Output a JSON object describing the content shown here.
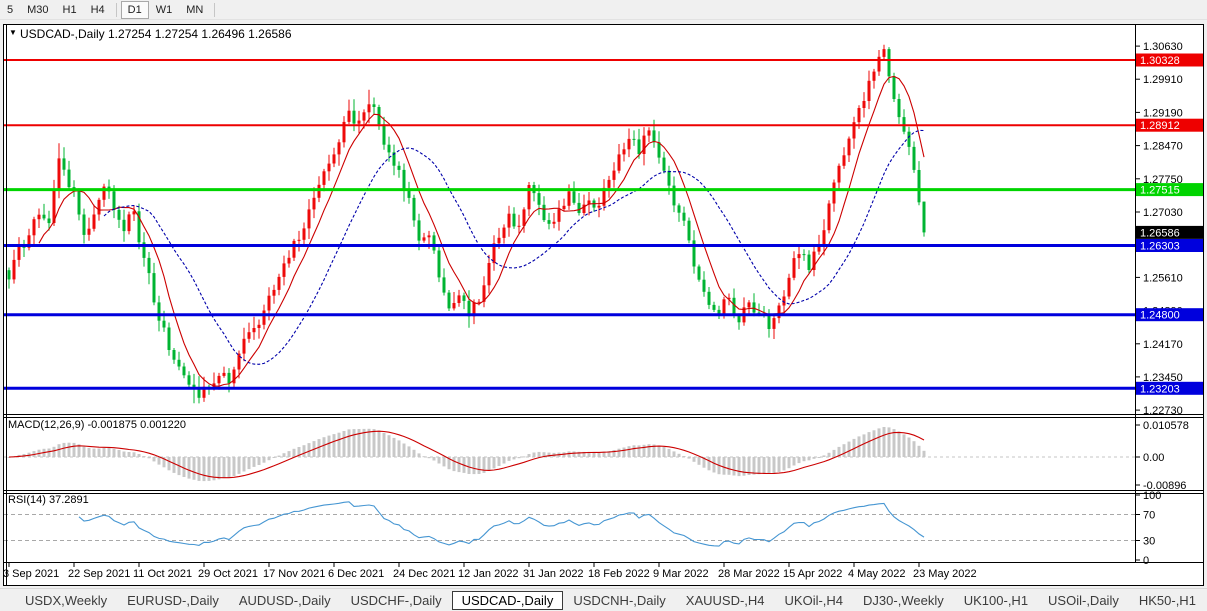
{
  "toolbar": {
    "items": [
      {
        "label": "5",
        "active": false,
        "sep_after": false
      },
      {
        "label": "M30",
        "active": false,
        "sep_after": false
      },
      {
        "label": "H1",
        "active": false,
        "sep_after": false
      },
      {
        "label": "H4",
        "active": false,
        "sep_after": true
      },
      {
        "label": "D1",
        "active": true,
        "sep_after": false
      },
      {
        "label": "W1",
        "active": false,
        "sep_after": false
      },
      {
        "label": "MN",
        "active": false,
        "sep_after": true
      }
    ]
  },
  "chart_title": {
    "collapse_icon": "▼",
    "text": "USDCAD-,Daily  1.27254 1.27254 1.26496 1.26586"
  },
  "chart_data": {
    "type": "candlestick",
    "symbol": "USDCAD-",
    "timeframe": "Daily",
    "ohlc_readout": {
      "open": 1.27254,
      "high": 1.27254,
      "low": 1.26496,
      "close": 1.26586
    },
    "num_candles": 184,
    "candles_per_date_label": 13,
    "x_date_labels": [
      "3 Sep 2021",
      "22 Sep 2021",
      "11 Oct 2021",
      "29 Oct 2021",
      "17 Nov 2021",
      "6 Dec 2021",
      "24 Dec 2021",
      "12 Jan 2022",
      "31 Jan 2022",
      "18 Feb 2022",
      "9 Mar 2022",
      "28 Mar 2022",
      "15 Apr 2022",
      "4 May 2022",
      "23 May 2022"
    ],
    "price_axis_ticks": [
      "1.30630",
      "1.29910",
      "1.29190",
      "1.28470",
      "1.27750",
      "1.27030",
      "1.26320",
      "1.25610",
      "1.24890",
      "1.24170",
      "1.23450",
      "1.22730"
    ],
    "price_range_estimate": {
      "top": 1.31022,
      "bottom": 1.2265
    },
    "grid": false,
    "candle_colors": {
      "up": "#ee0a0a",
      "down": "#00b432"
    },
    "horizontal_lines": [
      {
        "price": 1.30328,
        "color": "#ee0000",
        "width": 2,
        "badge_text": "1.30328"
      },
      {
        "price": 1.28912,
        "color": "#ee0000",
        "width": 2,
        "badge_text": "1.28912"
      },
      {
        "price": 1.27515,
        "color": "#00d400",
        "width": 3,
        "badge_text": "1.27515"
      },
      {
        "price": 1.26303,
        "color": "#0000dd",
        "width": 3,
        "badge_text": "1.26303"
      },
      {
        "price": 1.248,
        "color": "#0000dd",
        "width": 3,
        "badge_text": "1.24800"
      },
      {
        "price": 1.23203,
        "color": "#0000dd",
        "width": 3,
        "badge_text": "1.23203"
      }
    ],
    "current_price_badge": {
      "price": 1.26586,
      "text": "1.26586",
      "bg": "#000000"
    },
    "moving_averages": [
      {
        "period": 7,
        "color": "#cc0000",
        "style": "solid"
      },
      {
        "period": 20,
        "color": "#0000aa",
        "style": "dashed"
      }
    ],
    "price_path_anchors": [
      [
        0,
        1.256
      ],
      [
        2,
        1.2625
      ],
      [
        4,
        1.2655
      ],
      [
        6,
        1.27
      ],
      [
        8,
        1.2675
      ],
      [
        10,
        1.282
      ],
      [
        13,
        1.2745
      ],
      [
        15,
        1.265
      ],
      [
        17,
        1.27
      ],
      [
        19,
        1.2755
      ],
      [
        21,
        1.271
      ],
      [
        23,
        1.266
      ],
      [
        25,
        1.2705
      ],
      [
        27,
        1.26
      ],
      [
        29,
        1.251
      ],
      [
        31,
        1.245
      ],
      [
        33,
        1.2385
      ],
      [
        36,
        1.233
      ],
      [
        38,
        1.23
      ],
      [
        40,
        1.2325
      ],
      [
        42,
        1.235
      ],
      [
        44,
        1.233
      ],
      [
        46,
        1.2395
      ],
      [
        48,
        1.244
      ],
      [
        50,
        1.2455
      ],
      [
        52,
        1.252
      ],
      [
        54,
        1.2565
      ],
      [
        56,
        1.2605
      ],
      [
        58,
        1.2645
      ],
      [
        60,
        1.2705
      ],
      [
        62,
        1.276
      ],
      [
        64,
        1.2805
      ],
      [
        66,
        1.2855
      ],
      [
        68,
        1.292
      ],
      [
        70,
        1.29
      ],
      [
        72,
        1.294
      ],
      [
        74,
        1.2895
      ],
      [
        76,
        1.283
      ],
      [
        78,
        1.2795
      ],
      [
        80,
        1.273
      ],
      [
        82,
        1.264
      ],
      [
        84,
        1.2655
      ],
      [
        86,
        1.256
      ],
      [
        88,
        1.2495
      ],
      [
        90,
        1.2525
      ],
      [
        92,
        1.248
      ],
      [
        94,
        1.251
      ],
      [
        96,
        1.259
      ],
      [
        98,
        1.265
      ],
      [
        100,
        1.27
      ],
      [
        102,
        1.2675
      ],
      [
        104,
        1.276
      ],
      [
        106,
        1.272
      ],
      [
        108,
        1.2675
      ],
      [
        110,
        1.271
      ],
      [
        112,
        1.2745
      ],
      [
        114,
        1.27
      ],
      [
        116,
        1.273
      ],
      [
        118,
        1.2715
      ],
      [
        120,
        1.277
      ],
      [
        122,
        1.283
      ],
      [
        124,
        1.2865
      ],
      [
        126,
        1.283
      ],
      [
        128,
        1.288
      ],
      [
        130,
        1.282
      ],
      [
        132,
        1.276
      ],
      [
        134,
        1.27
      ],
      [
        136,
        1.264
      ],
      [
        138,
        1.256
      ],
      [
        140,
        1.2505
      ],
      [
        142,
        1.2485
      ],
      [
        144,
        1.252
      ],
      [
        146,
        1.2465
      ],
      [
        148,
        1.2505
      ],
      [
        150,
        1.248
      ],
      [
        152,
        1.245
      ],
      [
        154,
        1.25
      ],
      [
        156,
        1.256
      ],
      [
        158,
        1.2615
      ],
      [
        160,
        1.2575
      ],
      [
        162,
        1.263
      ],
      [
        164,
        1.272
      ],
      [
        166,
        1.28
      ],
      [
        168,
        1.2865
      ],
      [
        170,
        1.293
      ],
      [
        172,
        1.2985
      ],
      [
        174,
        1.304
      ],
      [
        175,
        1.3058
      ],
      [
        176,
        1.2995
      ],
      [
        177,
        1.295
      ],
      [
        178,
        1.2905
      ],
      [
        179,
        1.2875
      ],
      [
        180,
        1.2845
      ],
      [
        181,
        1.2795
      ],
      [
        182,
        1.2725
      ],
      [
        183,
        1.26586
      ]
    ],
    "forced_extremes": [
      {
        "i": 10,
        "h": 1.2852
      },
      {
        "i": 37,
        "l": 1.2288
      },
      {
        "i": 72,
        "h": 1.2968
      },
      {
        "i": 175,
        "h": 1.3066
      }
    ],
    "indicators": {
      "macd": {
        "label": "MACD(12,26,9) -0.001875 0.001220",
        "name": "MACD",
        "params": [
          12,
          26,
          9
        ],
        "value_main": -0.001875,
        "value_signal": 0.00122,
        "axis_labels": [
          "0.010578",
          "0.00",
          "-0.00896"
        ],
        "histogram_color": "#c8c8c8",
        "signal_color": "#cc0000"
      },
      "rsi": {
        "label": "RSI(14) 37.2891",
        "period": 14,
        "value": 37.2891,
        "axis_labels": [
          "100",
          "70",
          "30",
          "0"
        ],
        "levels": [
          70,
          30
        ],
        "line_color": "#4696d2"
      }
    }
  },
  "tabs": {
    "items": [
      "USDX,Weekly",
      "EURUSD-,Daily",
      "AUDUSD-,Daily",
      "USDCHF-,Daily",
      "USDCAD-,Daily",
      "USDCNH-,Daily",
      "XAUUSD-,H4",
      "UKOil-,H4",
      "DJ30-,Weekly",
      "UK100-,H1",
      "USOil-,Daily",
      "HK50-,H1"
    ],
    "active": "USDCAD-,Daily",
    "scroll_left_icon": "◄",
    "scroll_right_icon": "►"
  }
}
